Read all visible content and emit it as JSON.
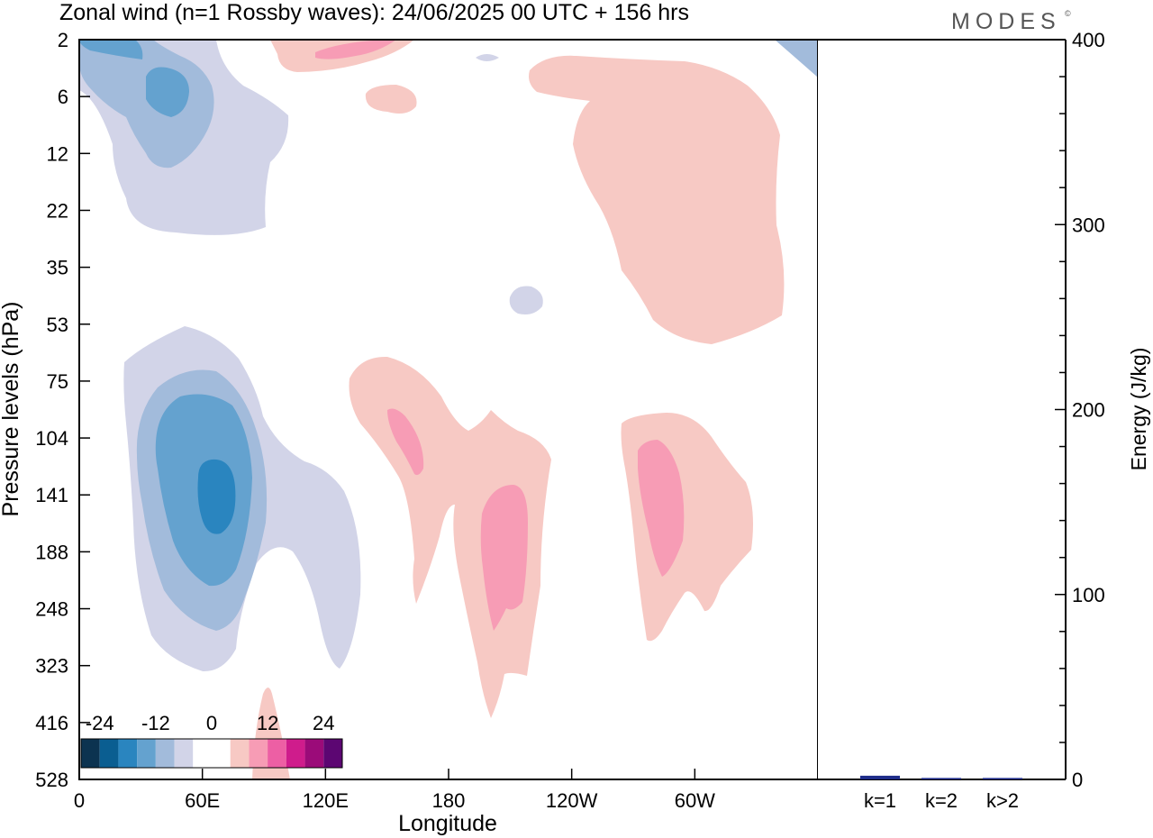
{
  "title": "Zonal wind (n=1 Rossby waves):  24/06/2025  00 UTC  + 156 hrs",
  "brand": "MODES",
  "brand_mark": "©",
  "chart_data": [
    {
      "type": "heatmap",
      "xlabel": "Longitude",
      "ylabel": "Pressure levels (hPa)",
      "x_ticks": [
        "0",
        "60E",
        "120E",
        "180",
        "120W",
        "60W"
      ],
      "x_tick_values": [
        0,
        60,
        120,
        180,
        240,
        300
      ],
      "xlim": [
        0,
        360
      ],
      "y_ticks": [
        "2",
        "6",
        "12",
        "22",
        "35",
        "53",
        "75",
        "104",
        "141",
        "188",
        "248",
        "323",
        "416",
        "528"
      ],
      "colorbar": {
        "labels": [
          "-24",
          "-12",
          "0",
          "12",
          "24"
        ],
        "label_values": [
          -24,
          -12,
          0,
          12,
          24
        ],
        "levels": [
          -28,
          -24,
          -20,
          -16,
          -12,
          -8,
          -4,
          0,
          4,
          8,
          12,
          16,
          20,
          24,
          28
        ],
        "colors": [
          "#0c3350",
          "#0a5e91",
          "#2a85bf",
          "#64a2cf",
          "#a2bbdb",
          "#d2d4e8",
          "#ffffff",
          "#ffffff",
          "#f7c9c4",
          "#f79cb5",
          "#ed5fa4",
          "#cf1c8c",
          "#9b0b79",
          "#5c0672"
        ]
      },
      "features": [
        {
          "sign": "negative",
          "min_value": -16,
          "lon_range": [
            20,
            110
          ],
          "level_range": [
            "53",
            "323"
          ]
        },
        {
          "sign": "negative",
          "min_value": -12,
          "lon_range": [
            0,
            100
          ],
          "level_range": [
            "2",
            "22"
          ]
        },
        {
          "sign": "positive",
          "max_value": 8,
          "lon_range": [
            130,
            230
          ],
          "level_range": [
            "75",
            "416"
          ]
        },
        {
          "sign": "positive",
          "max_value": 8,
          "lon_range": [
            265,
            330
          ],
          "level_range": [
            "104",
            "248"
          ]
        },
        {
          "sign": "positive",
          "max_value": 4,
          "lon_range": [
            220,
            345
          ],
          "level_range": [
            "2",
            "53"
          ]
        },
        {
          "sign": "positive",
          "max_value": 8,
          "lon_range": [
            100,
            160
          ],
          "level_range": [
            "2",
            "6"
          ]
        }
      ]
    },
    {
      "type": "bar",
      "categories": [
        "k=1",
        "k=2",
        "k>2"
      ],
      "values": [
        2.0,
        0.8,
        0.8
      ],
      "ylabel": "Energy (J/kg)",
      "ylim": [
        0,
        400
      ],
      "y_ticks": [
        "0",
        "100",
        "200",
        "300",
        "400"
      ],
      "y_tick_values": [
        0,
        100,
        200,
        300,
        400
      ],
      "bar_color": "#1f2d8a"
    }
  ]
}
